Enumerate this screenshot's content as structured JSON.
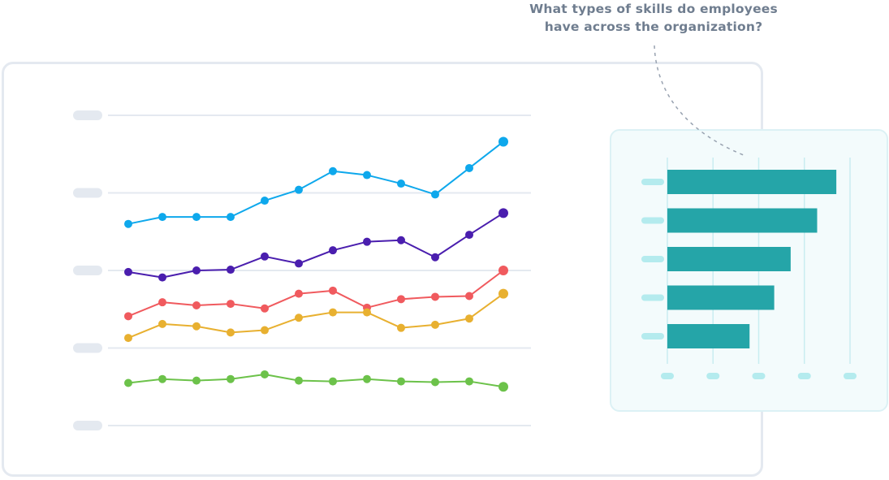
{
  "question": {
    "line1": "What types of skills do employees",
    "line2": "have across the organization?"
  },
  "colors": {
    "grid": "#e4e9f0",
    "label_placeholder": "#e4e9f0",
    "bar": "#25a5a8",
    "bar_label_placeholder": "#b4ebee",
    "side_grid": "#c9edf1",
    "connector": "#98a2b0"
  },
  "chart_data": [
    {
      "type": "line",
      "x": [
        1,
        2,
        3,
        4,
        5,
        6,
        7,
        8,
        9,
        10,
        11,
        12
      ],
      "ylim": [
        0,
        4
      ],
      "y_gridlines": [
        0,
        1,
        2,
        3,
        4
      ],
      "grid": true,
      "series": [
        {
          "color": "#0ea8ec",
          "values": [
            2.6,
            2.69,
            2.69,
            2.69,
            2.9,
            3.04,
            3.28,
            3.23,
            3.12,
            2.98,
            3.32,
            3.66
          ]
        },
        {
          "color": "#4a1eae",
          "values": [
            1.98,
            1.91,
            2.0,
            2.01,
            2.18,
            2.09,
            2.26,
            2.37,
            2.39,
            2.17,
            2.46,
            2.74
          ]
        },
        {
          "color": "#f05a5e",
          "values": [
            1.41,
            1.59,
            1.55,
            1.57,
            1.51,
            1.7,
            1.74,
            1.52,
            1.63,
            1.66,
            1.67,
            2.0
          ]
        },
        {
          "color": "#e8b030",
          "values": [
            1.13,
            1.31,
            1.28,
            1.2,
            1.23,
            1.39,
            1.46,
            1.46,
            1.26,
            1.3,
            1.38,
            1.7
          ]
        },
        {
          "color": "#6cc24a",
          "values": [
            0.55,
            0.6,
            0.58,
            0.6,
            0.66,
            0.58,
            0.57,
            0.6,
            0.57,
            0.56,
            0.57,
            0.5
          ]
        }
      ]
    },
    {
      "type": "bar",
      "orientation": "horizontal",
      "values": [
        3.7,
        3.28,
        2.7,
        2.34,
        1.8
      ],
      "xlim": [
        0,
        4
      ],
      "x_gridlines": [
        0,
        1,
        2,
        3,
        4
      ],
      "grid": true
    }
  ]
}
